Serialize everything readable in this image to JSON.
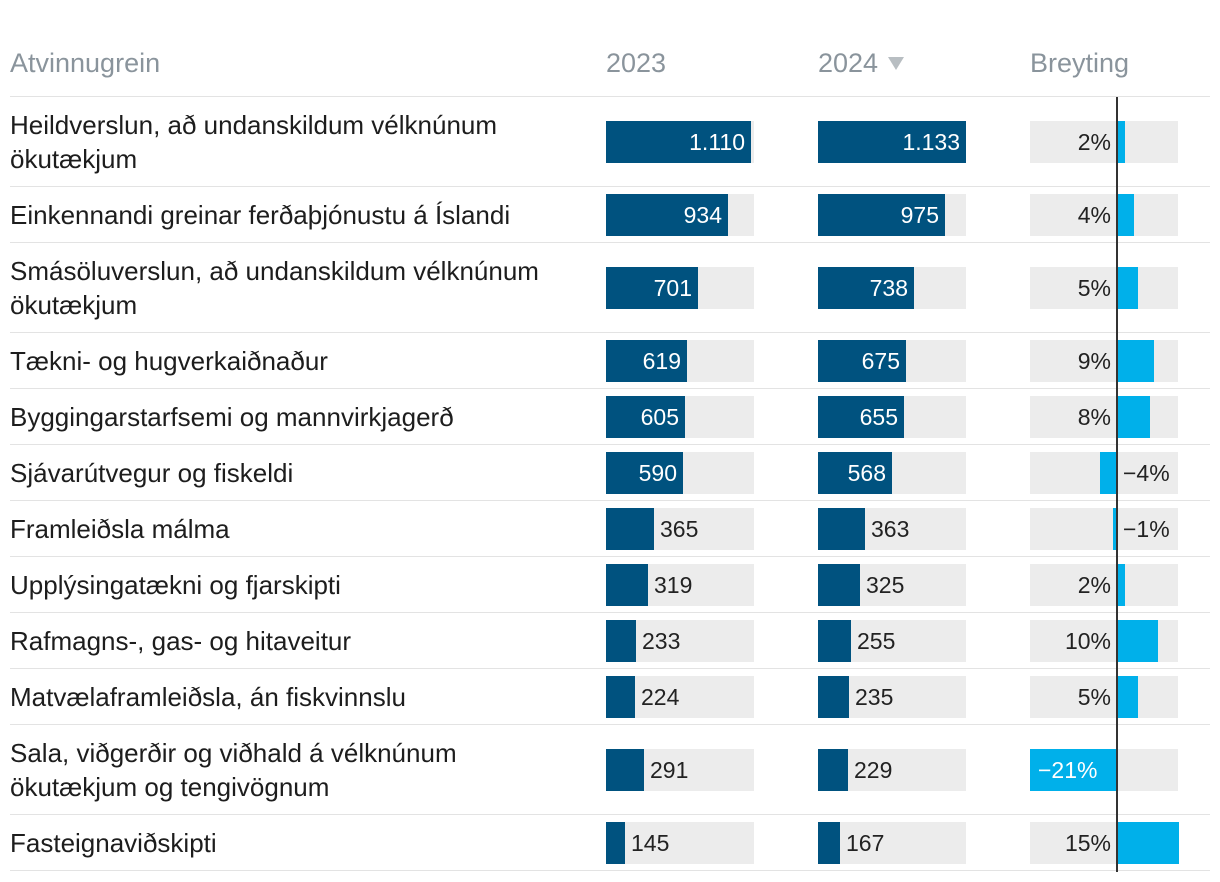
{
  "header": {
    "col_sector": "Atvinnugrein",
    "col_2023": "2023",
    "col_2024": "2024",
    "col_change": "Breyting",
    "sort_icon": "sort-descending-triangle-icon"
  },
  "colors": {
    "bar": "#00527f",
    "change": "#00b0ea",
    "track": "#ececec"
  },
  "chart_data": {
    "type": "table",
    "scale_max": 1133,
    "change_scale_pct": 21,
    "rows": [
      {
        "label": "Heildverslun, að undanskildum vélknúnum ökutækjum",
        "v2023": 1110,
        "v2024": 1133,
        "v2023_label": "1.110",
        "v2024_label": "1.133",
        "change": 2,
        "change_label": "2%"
      },
      {
        "label": "Einkennandi greinar ferðaþjónustu á Íslandi",
        "v2023": 934,
        "v2024": 975,
        "v2023_label": "934",
        "v2024_label": "975",
        "change": 4,
        "change_label": "4%"
      },
      {
        "label": "Smásöluverslun, að undanskildum vélknúnum ökutækjum",
        "v2023": 701,
        "v2024": 738,
        "v2023_label": "701",
        "v2024_label": "738",
        "change": 5,
        "change_label": "5%"
      },
      {
        "label": "Tækni- og hugverkaiðnaður",
        "v2023": 619,
        "v2024": 675,
        "v2023_label": "619",
        "v2024_label": "675",
        "change": 9,
        "change_label": "9%"
      },
      {
        "label": "Byggingarstarfsemi og mannvirkjagerð",
        "v2023": 605,
        "v2024": 655,
        "v2023_label": "605",
        "v2024_label": "655",
        "change": 8,
        "change_label": "8%"
      },
      {
        "label": "Sjávarútvegur og fiskeldi",
        "v2023": 590,
        "v2024": 568,
        "v2023_label": "590",
        "v2024_label": "568",
        "change": -4,
        "change_label": "−4%"
      },
      {
        "label": "Framleiðsla málma",
        "v2023": 365,
        "v2024": 363,
        "v2023_label": "365",
        "v2024_label": "363",
        "change": -1,
        "change_label": "−1%"
      },
      {
        "label": "Upplýsingatækni og fjarskipti",
        "v2023": 319,
        "v2024": 325,
        "v2023_label": "319",
        "v2024_label": "325",
        "change": 2,
        "change_label": "2%"
      },
      {
        "label": "Rafmagns-, gas- og hitaveitur",
        "v2023": 233,
        "v2024": 255,
        "v2023_label": "233",
        "v2024_label": "255",
        "change": 10,
        "change_label": "10%"
      },
      {
        "label": "Matvælaframleiðsla, án fiskvinnslu",
        "v2023": 224,
        "v2024": 235,
        "v2023_label": "224",
        "v2024_label": "235",
        "change": 5,
        "change_label": "5%"
      },
      {
        "label": "Sala, viðgerðir og viðhald á vélknúnum ökutækjum og tengivögnum",
        "v2023": 291,
        "v2024": 229,
        "v2023_label": "291",
        "v2024_label": "229",
        "change": -21,
        "change_label": "−21%"
      },
      {
        "label": "Fasteignaviðskipti",
        "v2023": 145,
        "v2024": 167,
        "v2023_label": "145",
        "v2024_label": "167",
        "change": 15,
        "change_label": "15%"
      }
    ]
  }
}
